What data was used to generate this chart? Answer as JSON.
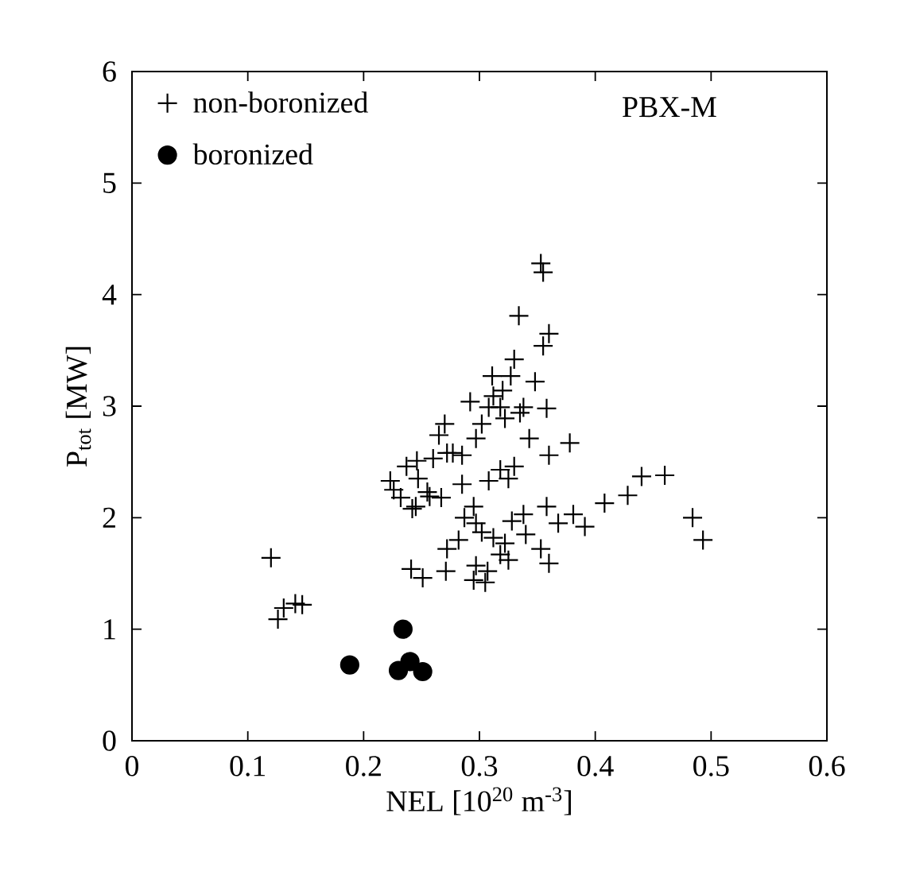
{
  "chart_data": {
    "type": "scatter",
    "xlabel": "NEL [10$^{20}$ m$^{-3}$]",
    "ylabel": "P$_{tot}$ [MW]",
    "annotations": [
      "PBX-M"
    ],
    "xlim": [
      0,
      0.6
    ],
    "ylim": [
      0,
      6
    ],
    "xticks": [
      0,
      0.1,
      0.2,
      0.3,
      0.4,
      0.5,
      0.6
    ],
    "yticks": [
      0,
      1,
      2,
      3,
      4,
      5,
      6
    ],
    "grid": false,
    "legend": "top left",
    "series": [
      {
        "name": "non-boronized",
        "color": "#000000",
        "marker": "cross",
        "x": [
          0.12,
          0.126,
          0.131,
          0.141,
          0.147,
          0.223,
          0.226,
          0.237,
          0.242,
          0.246,
          0.241,
          0.251,
          0.257,
          0.26,
          0.27,
          0.272,
          0.285,
          0.271,
          0.272,
          0.287,
          0.285,
          0.297,
          0.302,
          0.308,
          0.311,
          0.32,
          0.327,
          0.33,
          0.334,
          0.353,
          0.355,
          0.36,
          0.355,
          0.348,
          0.358,
          0.338,
          0.343,
          0.36,
          0.378,
          0.33,
          0.325,
          0.308,
          0.408,
          0.428,
          0.44,
          0.46,
          0.484,
          0.493,
          0.391,
          0.381,
          0.368,
          0.358,
          0.36,
          0.353,
          0.34,
          0.338,
          0.328,
          0.318,
          0.307,
          0.297,
          0.297,
          0.295,
          0.302,
          0.312,
          0.325,
          0.322,
          0.295,
          0.305,
          0.282,
          0.255,
          0.267,
          0.245,
          0.265,
          0.277,
          0.232,
          0.247,
          0.318,
          0.322,
          0.312,
          0.335,
          0.318,
          0.292
        ],
        "values": [
          1.64,
          1.09,
          1.19,
          1.23,
          1.22,
          2.33,
          2.25,
          2.46,
          2.08,
          2.51,
          1.54,
          1.46,
          2.19,
          2.53,
          2.84,
          2.58,
          2.56,
          1.52,
          1.72,
          2.0,
          2.3,
          2.71,
          2.84,
          2.99,
          3.27,
          3.14,
          3.27,
          3.42,
          3.81,
          4.28,
          4.2,
          3.65,
          3.54,
          3.22,
          2.98,
          2.99,
          2.71,
          2.56,
          2.67,
          2.46,
          2.35,
          2.33,
          2.13,
          2.2,
          2.37,
          2.38,
          2.0,
          1.8,
          1.92,
          2.03,
          1.95,
          2.1,
          1.59,
          1.72,
          1.85,
          2.03,
          1.97,
          1.67,
          1.52,
          1.57,
          1.95,
          2.1,
          1.87,
          1.82,
          1.62,
          1.77,
          1.44,
          1.42,
          1.8,
          2.23,
          2.18,
          2.1,
          2.74,
          2.58,
          2.18,
          2.35,
          2.43,
          2.89,
          3.09,
          2.94,
          2.99,
          3.04
        ]
      },
      {
        "name": "boronized",
        "color": "#000000",
        "marker": "circle",
        "x": [
          0.188,
          0.234,
          0.23,
          0.24,
          0.251
        ],
        "values": [
          0.68,
          1.0,
          0.63,
          0.71,
          0.62
        ]
      }
    ]
  }
}
